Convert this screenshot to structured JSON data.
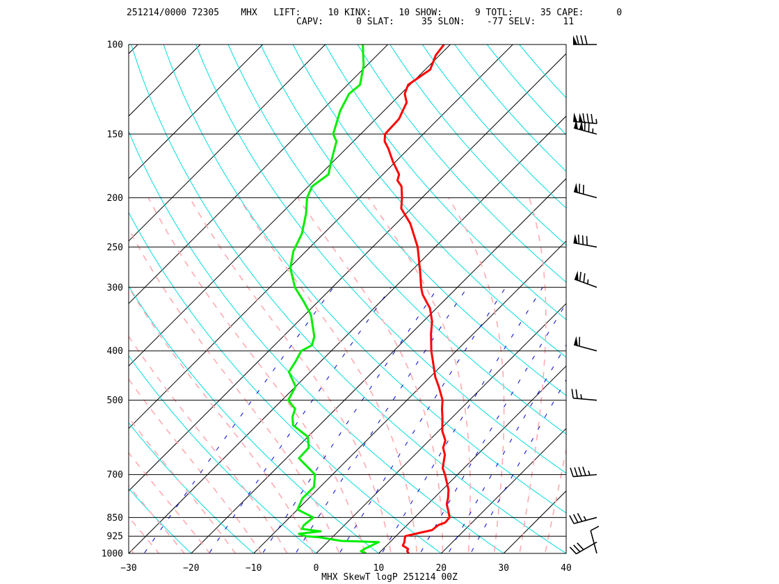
{
  "header": {
    "line1": "251214/0000 72305    MHX   LIFT:     10 KINX:     10 SHOW:      9 TOTL:     35 CAPE:      0",
    "line2": "CAPV:      0 SLAT:     35 SLON:    -77 SELV:     11"
  },
  "footer_title": "MHX SkewT logP 251214 00Z",
  "chart_data": {
    "type": "line",
    "title": "MHX SkewT logP 251214 00Z",
    "x_axis": {
      "label": "",
      "unit": "°C",
      "range": [
        -30,
        40
      ],
      "ticks": [
        -30,
        -20,
        -10,
        0,
        10,
        20,
        30,
        40
      ]
    },
    "y_axis": {
      "label": "",
      "unit": "hPa",
      "scale": "log",
      "range": [
        1000,
        100
      ],
      "ticks": [
        100,
        150,
        200,
        250,
        300,
        400,
        500,
        700,
        850,
        925,
        1000
      ]
    },
    "grid": true,
    "colors": {
      "temperature": "#ff0000",
      "dewpoint": "#00ee00",
      "isotherm": "#000000",
      "dry_adiabat": "#00dddd",
      "moist_adiabat": "#ffaab0",
      "mixing_ratio": "#0000cc",
      "frame": "#000000"
    },
    "series": [
      {
        "key": "temperature",
        "points": [
          [
            1000,
            14.8
          ],
          [
            990,
            14.2
          ],
          [
            980,
            14.0
          ],
          [
            965,
            12.6
          ],
          [
            950,
            12.3
          ],
          [
            935,
            11.8
          ],
          [
            925,
            11.5
          ],
          [
            910,
            13.4
          ],
          [
            900,
            14.8
          ],
          [
            880,
            15.0
          ],
          [
            870,
            15.7
          ],
          [
            850,
            15.6
          ],
          [
            830,
            14.6
          ],
          [
            800,
            13.0
          ],
          [
            780,
            12.3
          ],
          [
            750,
            11.0
          ],
          [
            700,
            8.0
          ],
          [
            680,
            6.6
          ],
          [
            640,
            4.8
          ],
          [
            620,
            3.4
          ],
          [
            600,
            2.6
          ],
          [
            575,
            0.6
          ],
          [
            540,
            -1.6
          ],
          [
            520,
            -3.0
          ],
          [
            500,
            -4.3
          ],
          [
            470,
            -7.1
          ],
          [
            450,
            -9.2
          ],
          [
            420,
            -12.0
          ],
          [
            400,
            -14.0
          ],
          [
            370,
            -16.8
          ],
          [
            350,
            -18.6
          ],
          [
            330,
            -21.0
          ],
          [
            310,
            -24.4
          ],
          [
            300,
            -25.8
          ],
          [
            280,
            -28.4
          ],
          [
            250,
            -32.8
          ],
          [
            225,
            -37.7
          ],
          [
            210,
            -41.6
          ],
          [
            200,
            -43.2
          ],
          [
            190,
            -45.1
          ],
          [
            185,
            -46.7
          ],
          [
            180,
            -47.4
          ],
          [
            170,
            -50.4
          ],
          [
            160,
            -53.3
          ],
          [
            155,
            -55.0
          ],
          [
            150,
            -56.1
          ],
          [
            140,
            -56.3
          ],
          [
            135,
            -57.0
          ],
          [
            130,
            -57.7
          ],
          [
            125,
            -59.4
          ],
          [
            120,
            -60.3
          ],
          [
            112,
            -59.2
          ],
          [
            105,
            -60.6
          ],
          [
            100,
            -61.0
          ]
        ]
      },
      {
        "key": "dewpoint",
        "points": [
          [
            1000,
            8.0
          ],
          [
            990,
            6.8
          ],
          [
            980,
            7.0
          ],
          [
            960,
            7.8
          ],
          [
            950,
            8.2
          ],
          [
            945,
            2.0
          ],
          [
            930,
            -2.0
          ],
          [
            925,
            -4.4
          ],
          [
            915,
            -5.9
          ],
          [
            905,
            -2.8
          ],
          [
            895,
            -6.2
          ],
          [
            880,
            -6.5
          ],
          [
            850,
            -6.2
          ],
          [
            820,
            -10.0
          ],
          [
            780,
            -11.0
          ],
          [
            740,
            -11.0
          ],
          [
            700,
            -12.8
          ],
          [
            650,
            -18.0
          ],
          [
            620,
            -18.1
          ],
          [
            590,
            -20.0
          ],
          [
            560,
            -24.2
          ],
          [
            540,
            -25.6
          ],
          [
            520,
            -26.5
          ],
          [
            500,
            -29.0
          ],
          [
            470,
            -30.0
          ],
          [
            440,
            -33.4
          ],
          [
            420,
            -34.0
          ],
          [
            400,
            -34.8
          ],
          [
            390,
            -34.0
          ],
          [
            375,
            -35.0
          ],
          [
            340,
            -39.0
          ],
          [
            320,
            -42.3
          ],
          [
            300,
            -46.0
          ],
          [
            275,
            -49.8
          ],
          [
            255,
            -52.0
          ],
          [
            235,
            -53.5
          ],
          [
            215,
            -56.0
          ],
          [
            200,
            -58.4
          ],
          [
            190,
            -59.4
          ],
          [
            180,
            -58.7
          ],
          [
            170,
            -60.3
          ],
          [
            155,
            -62.7
          ],
          [
            150,
            -64.4
          ],
          [
            135,
            -67.0
          ],
          [
            125,
            -68.3
          ],
          [
            120,
            -68.0
          ],
          [
            110,
            -70.5
          ],
          [
            100,
            -74.0
          ]
        ]
      }
    ],
    "wind_barbs": [
      {
        "p": 1000,
        "dir": 345,
        "spd": 10
      },
      {
        "p": 950,
        "dir": 240,
        "spd": 30
      },
      {
        "p": 850,
        "dir": 255,
        "spd": 35
      },
      {
        "p": 700,
        "dir": 265,
        "spd": 45
      },
      {
        "p": 500,
        "dir": 275,
        "spd": 25
      },
      {
        "p": 400,
        "dir": 285,
        "spd": 60
      },
      {
        "p": 300,
        "dir": 290,
        "spd": 75
      },
      {
        "p": 250,
        "dir": 280,
        "spd": 80
      },
      {
        "p": 200,
        "dir": 285,
        "spd": 70
      },
      {
        "p": 150,
        "dir": 285,
        "spd": 125
      },
      {
        "p": 143,
        "dir": 275,
        "spd": 135
      },
      {
        "p": 100,
        "dir": 270,
        "spd": 80
      }
    ]
  }
}
